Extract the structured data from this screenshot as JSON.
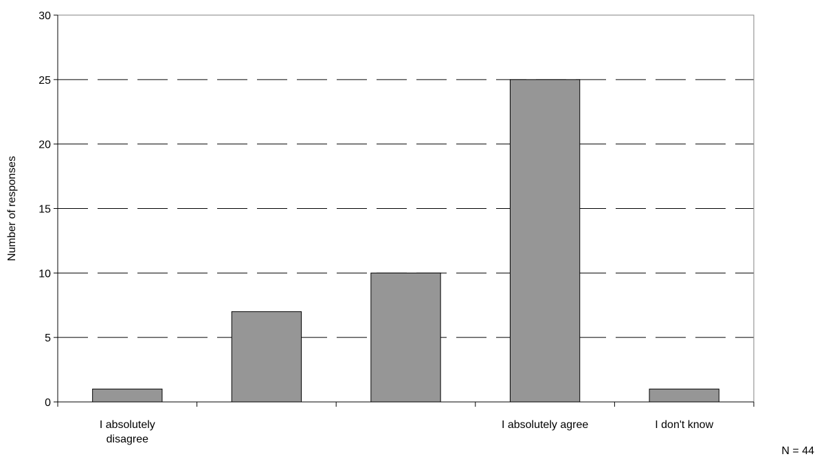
{
  "chart_data": {
    "type": "bar",
    "categories": [
      [
        "I absolutely",
        "disagree"
      ],
      [
        ""
      ],
      [
        ""
      ],
      [
        "I absolutely agree"
      ],
      [
        "I don't know"
      ]
    ],
    "values": [
      1,
      7,
      10,
      25,
      1
    ],
    "title": "",
    "xlabel": "",
    "ylabel": "Number of responses",
    "ylim": [
      0,
      30
    ],
    "yticks": [
      "0",
      "5",
      "10",
      "15",
      "20",
      "25",
      "30"
    ],
    "grid": "horizontal dashed",
    "legend": "none",
    "note": "N = 44",
    "colors": {
      "bar_fill": "#969696",
      "bar_stroke": "#000000",
      "grid": "#000000",
      "axis": "#000000"
    }
  }
}
